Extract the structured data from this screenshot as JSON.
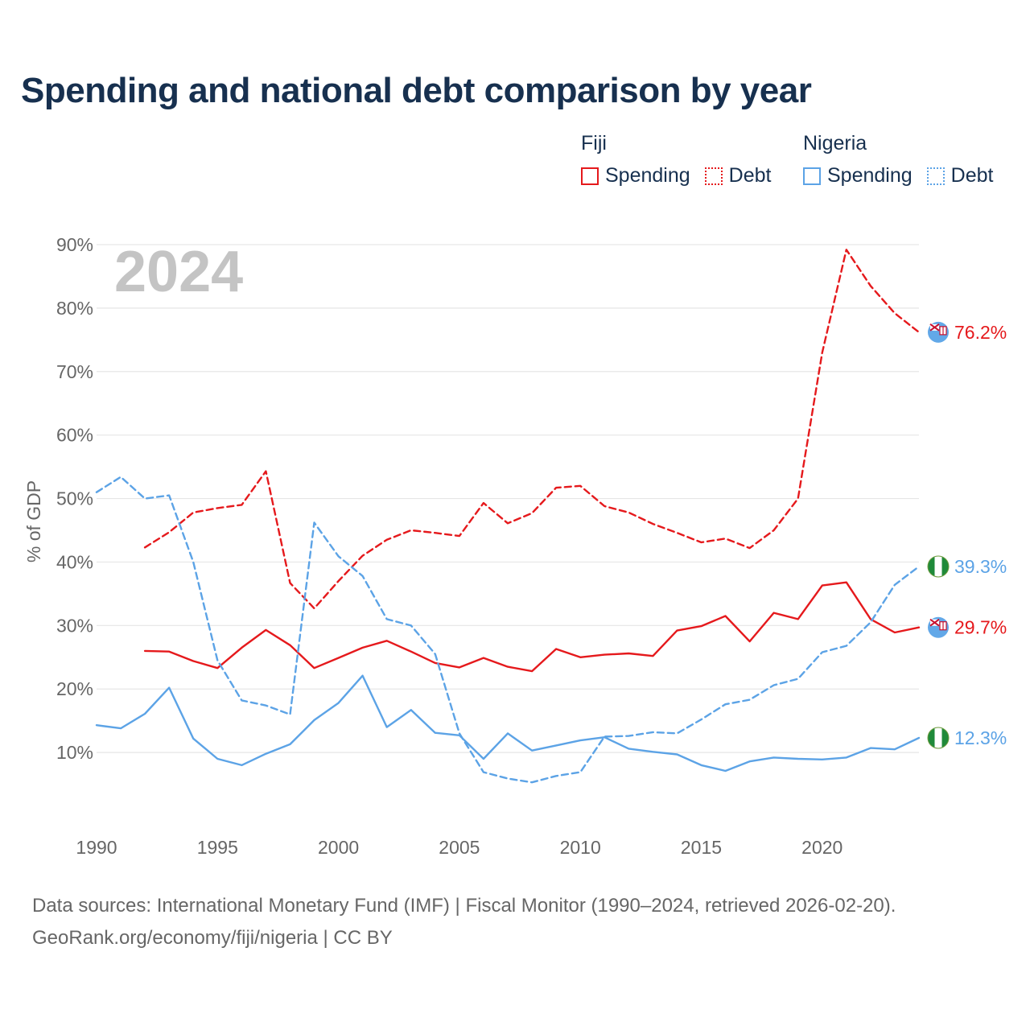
{
  "title": "Spending and national debt comparison by year",
  "legend": {
    "groups": [
      {
        "country": "Fiji",
        "color": "#e5191c",
        "spending_label": "Spending",
        "debt_label": "Debt"
      },
      {
        "country": "Nigeria",
        "color": "#5ca3e6",
        "spending_label": "Spending",
        "debt_label": "Debt"
      }
    ]
  },
  "footer": {
    "sources": "Data sources: International Monetary Fund (IMF) | Fiscal Monitor (1990–2024, retrieved 2026-02-20).",
    "link": "GeoRank.org/economy/fiji/nigeria | CC BY"
  },
  "chart_data": {
    "type": "line",
    "title": "Spending and national debt comparison by year",
    "year_watermark": "2024",
    "ylabel": "% of GDP",
    "xlabel": "",
    "xlim": [
      1990,
      2024
    ],
    "ylim": [
      0,
      90
    ],
    "x_ticks": [
      1990,
      1995,
      2000,
      2005,
      2010,
      2015,
      2020
    ],
    "y_ticks": [
      10,
      20,
      30,
      40,
      50,
      60,
      70,
      80,
      90
    ],
    "y_tick_labels": [
      "10%",
      "20%",
      "30%",
      "40%",
      "50%",
      "60%",
      "70%",
      "80%",
      "90%"
    ],
    "grid": true,
    "series": [
      {
        "name": "Fiji Debt",
        "country": "Fiji",
        "metric": "Debt",
        "color": "#e5191c",
        "style": "dashed",
        "x": [
          1992,
          1993,
          1994,
          1995,
          1996,
          1997,
          1998,
          1999,
          2000,
          2001,
          2002,
          2003,
          2004,
          2005,
          2006,
          2007,
          2008,
          2009,
          2010,
          2011,
          2012,
          2013,
          2014,
          2015,
          2016,
          2017,
          2018,
          2019,
          2020,
          2021,
          2022,
          2023,
          2024
        ],
        "values": [
          42.3,
          44.7,
          47.8,
          48.5,
          49.0,
          54.3,
          36.7,
          32.7,
          37.0,
          41.0,
          43.5,
          45.0,
          44.6,
          44.1,
          49.3,
          46.1,
          47.7,
          51.7,
          52.0,
          48.8,
          47.8,
          46.0,
          44.6,
          43.1,
          43.7,
          42.2,
          45.0,
          50.0,
          73.0,
          89.2,
          83.5,
          79.2,
          76.2
        ],
        "end_label": "76.2%"
      },
      {
        "name": "Fiji Spending",
        "country": "Fiji",
        "metric": "Spending",
        "color": "#e5191c",
        "style": "solid",
        "x": [
          1992,
          1993,
          1994,
          1995,
          1996,
          1997,
          1998,
          1999,
          2000,
          2001,
          2002,
          2003,
          2004,
          2005,
          2006,
          2007,
          2008,
          2009,
          2010,
          2011,
          2012,
          2013,
          2014,
          2015,
          2016,
          2017,
          2018,
          2019,
          2020,
          2021,
          2022,
          2023,
          2024
        ],
        "values": [
          26.0,
          25.9,
          24.4,
          23.3,
          26.5,
          29.3,
          26.9,
          23.3,
          24.9,
          26.5,
          27.6,
          25.9,
          24.1,
          23.4,
          24.9,
          23.5,
          22.8,
          26.3,
          25.0,
          25.4,
          25.6,
          25.2,
          29.2,
          29.9,
          31.5,
          27.5,
          32.0,
          31.0,
          36.3,
          36.8,
          31.0,
          28.9,
          29.7
        ],
        "end_label": "29.7%"
      },
      {
        "name": "Nigeria Debt",
        "country": "Nigeria",
        "metric": "Debt",
        "color": "#5ca3e6",
        "style": "dashed",
        "x": [
          1990,
          1991,
          1992,
          1993,
          1994,
          1995,
          1996,
          1997,
          1998,
          1999,
          2000,
          2001,
          2002,
          2003,
          2004,
          2005,
          2006,
          2007,
          2008,
          2009,
          2010,
          2011,
          2012,
          2013,
          2014,
          2015,
          2016,
          2017,
          2018,
          2019,
          2020,
          2021,
          2022,
          2023,
          2024
        ],
        "values": [
          51.0,
          53.4,
          50.0,
          50.5,
          40.0,
          24.5,
          18.2,
          17.4,
          16.0,
          46.2,
          40.9,
          37.8,
          31.0,
          30.0,
          25.5,
          13.0,
          6.9,
          5.9,
          5.3,
          6.3,
          6.9,
          12.5,
          12.6,
          13.2,
          13.0,
          15.2,
          17.6,
          18.3,
          20.6,
          21.6,
          25.8,
          26.8,
          30.5,
          36.4,
          39.3
        ],
        "end_label": "39.3%"
      },
      {
        "name": "Nigeria Spending",
        "country": "Nigeria",
        "metric": "Spending",
        "color": "#5ca3e6",
        "style": "solid",
        "x": [
          1990,
          1991,
          1992,
          1993,
          1994,
          1995,
          1996,
          1997,
          1998,
          1999,
          2000,
          2001,
          2002,
          2003,
          2004,
          2005,
          2006,
          2007,
          2008,
          2009,
          2010,
          2011,
          2012,
          2013,
          2014,
          2015,
          2016,
          2017,
          2018,
          2019,
          2020,
          2021,
          2022,
          2023,
          2024
        ],
        "values": [
          14.3,
          13.8,
          16.1,
          20.2,
          12.2,
          9.0,
          8.0,
          9.8,
          11.3,
          15.1,
          17.8,
          22.1,
          14.0,
          16.7,
          13.1,
          12.7,
          9.0,
          13.0,
          10.3,
          11.1,
          11.9,
          12.4,
          10.6,
          10.1,
          9.7,
          8.0,
          7.1,
          8.6,
          9.2,
          9.0,
          8.9,
          9.2,
          10.7,
          10.5,
          12.3
        ],
        "end_label": "12.3%"
      }
    ]
  }
}
